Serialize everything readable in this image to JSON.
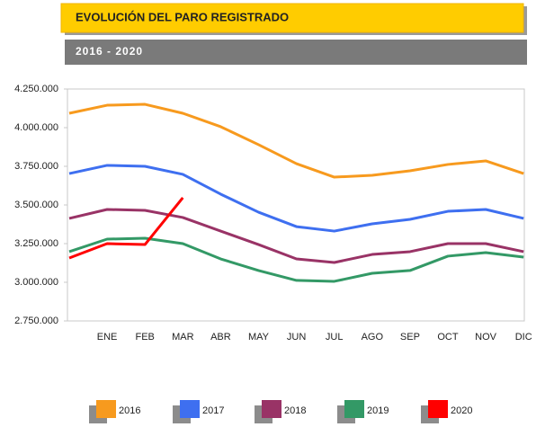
{
  "title": "EVOLUCIÓN DEL PARO REGISTRADO",
  "subtitle": "2016 - 2020",
  "chart_data": {
    "type": "line",
    "categories": [
      null,
      "ENE",
      "FEB",
      "MAR",
      "ABR",
      "MAY",
      "JUN",
      "JUL",
      "AGO",
      "SEP",
      "OCT",
      "NOV",
      "DIC"
    ],
    "ylim": [
      2750000,
      4250000
    ],
    "yticks": [
      {
        "value": 2750000,
        "label": "2.750.000"
      },
      {
        "value": 3000000,
        "label": "3.000.000"
      },
      {
        "value": 3250000,
        "label": "3.250.000"
      },
      {
        "value": 3500000,
        "label": "3.500.000"
      },
      {
        "value": 3750000,
        "label": "3.750.000"
      },
      {
        "value": 4000000,
        "label": "4.000.000"
      },
      {
        "value": 4250000,
        "label": "4.250.000"
      }
    ],
    "grid": false,
    "series": [
      {
        "name": "2016",
        "color": "#f79a1e",
        "values": [
          4093000,
          4145000,
          4151000,
          4093000,
          4006000,
          3890000,
          3767000,
          3680000,
          3692000,
          3721000,
          3762000,
          3785000,
          3703000
        ]
      },
      {
        "name": "2017",
        "color": "#3e6ff0",
        "values": [
          3703000,
          3756000,
          3750000,
          3698000,
          3570000,
          3453000,
          3360000,
          3331000,
          3378000,
          3407000,
          3459000,
          3471000,
          3413000
        ]
      },
      {
        "name": "2018",
        "color": "#993366",
        "values": [
          3413000,
          3471000,
          3465000,
          3419000,
          3331000,
          3244000,
          3151000,
          3128000,
          3180000,
          3198000,
          3250000,
          3250000,
          3198000
        ]
      },
      {
        "name": "2019",
        "color": "#339966",
        "values": [
          3198000,
          3279000,
          3285000,
          3250000,
          3151000,
          3076000,
          3012000,
          3006000,
          3058000,
          3076000,
          3169000,
          3192000,
          3163000
        ]
      },
      {
        "name": "2020",
        "color": "#ff0000",
        "values": [
          3157000,
          3250000,
          3244000,
          3547000,
          null,
          null,
          null,
          null,
          null,
          null,
          null,
          null,
          null
        ]
      }
    ]
  }
}
